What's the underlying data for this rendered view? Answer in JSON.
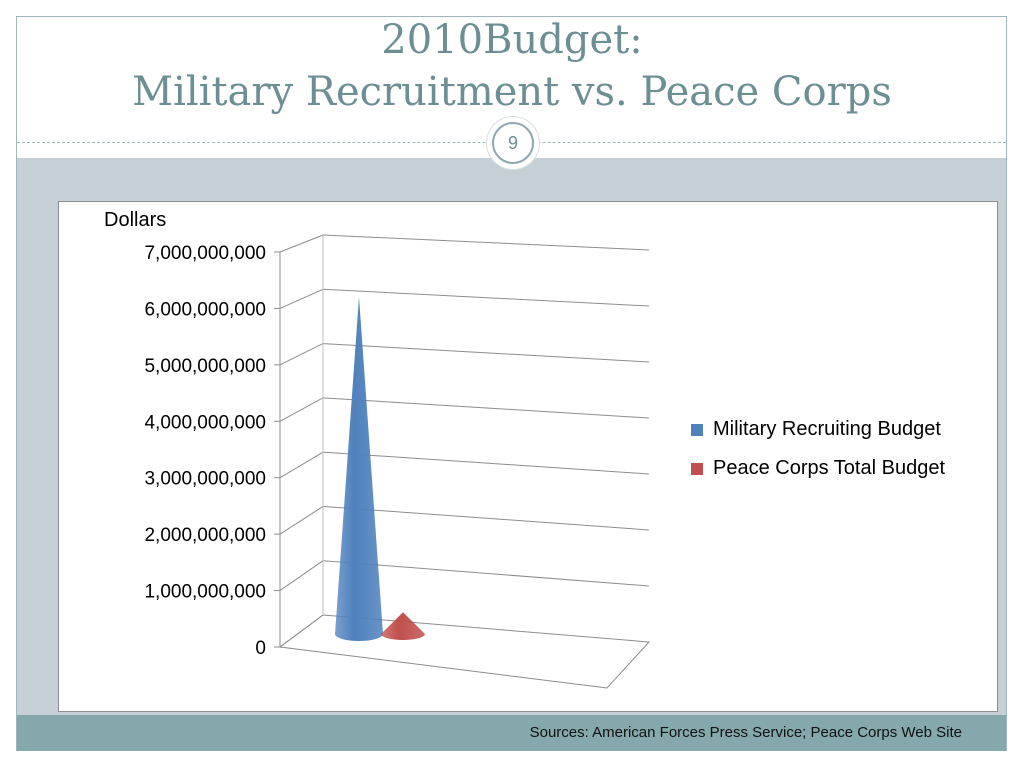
{
  "slide": {
    "title_line1": "2010Budget:",
    "title_line2": "Military Recruitment vs. Peace Corps",
    "slide_number": "9",
    "footer": "Sources: American Forces Press Service; Peace Corps Web Site"
  },
  "colors": {
    "title": "#6b8f93",
    "accent": "#84a8ab",
    "band": "#c4d0d6",
    "military": "#4f81bd",
    "peace_corps": "#c0504d"
  },
  "chart_data": {
    "type": "bar",
    "shape": "3d-cone",
    "title": "",
    "ylabel": "Dollars",
    "ylim": [
      0,
      7000000000
    ],
    "y_ticks": [
      "0",
      "1,000,000,000",
      "2,000,000,000",
      "3,000,000,000",
      "4,000,000,000",
      "5,000,000,000",
      "6,000,000,000",
      "7,000,000,000"
    ],
    "grid": true,
    "legend_position": "right",
    "series": [
      {
        "name": "Military Recruiting Budget",
        "values": [
          6200000000
        ],
        "color": "#4f81bd"
      },
      {
        "name": "Peace Corps Total Budget",
        "values": [
          400000000
        ],
        "color": "#c0504d"
      }
    ]
  }
}
